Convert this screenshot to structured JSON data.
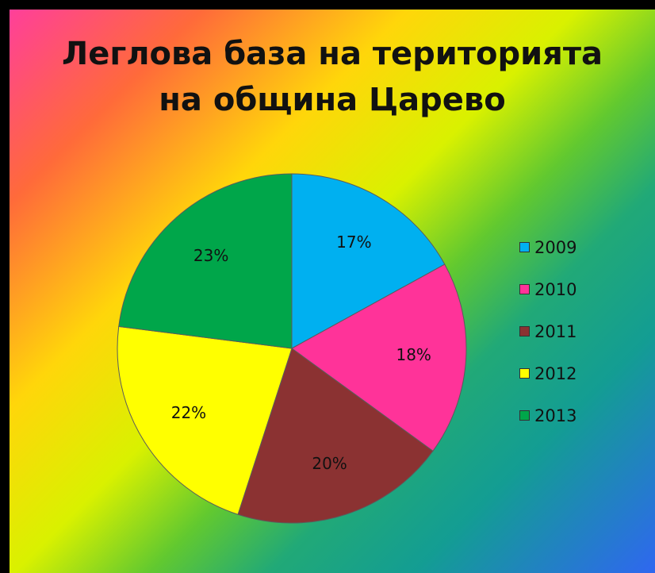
{
  "chart_data": {
    "type": "pie",
    "title_lines": [
      "Леглова база на територията",
      "на община Царево"
    ],
    "categories": [
      "2009",
      "2010",
      "2011",
      "2012",
      "2013"
    ],
    "values": [
      17,
      18,
      20,
      22,
      23
    ],
    "value_labels": [
      "17%",
      "18%",
      "20%",
      "22%",
      "23%"
    ],
    "colors": [
      "#00b0f0",
      "#ff3399",
      "#8b3232",
      "#ffff00",
      "#00a64a"
    ],
    "legend_position": "right",
    "start_angle_degrees": 0,
    "direction": "clockwise"
  }
}
